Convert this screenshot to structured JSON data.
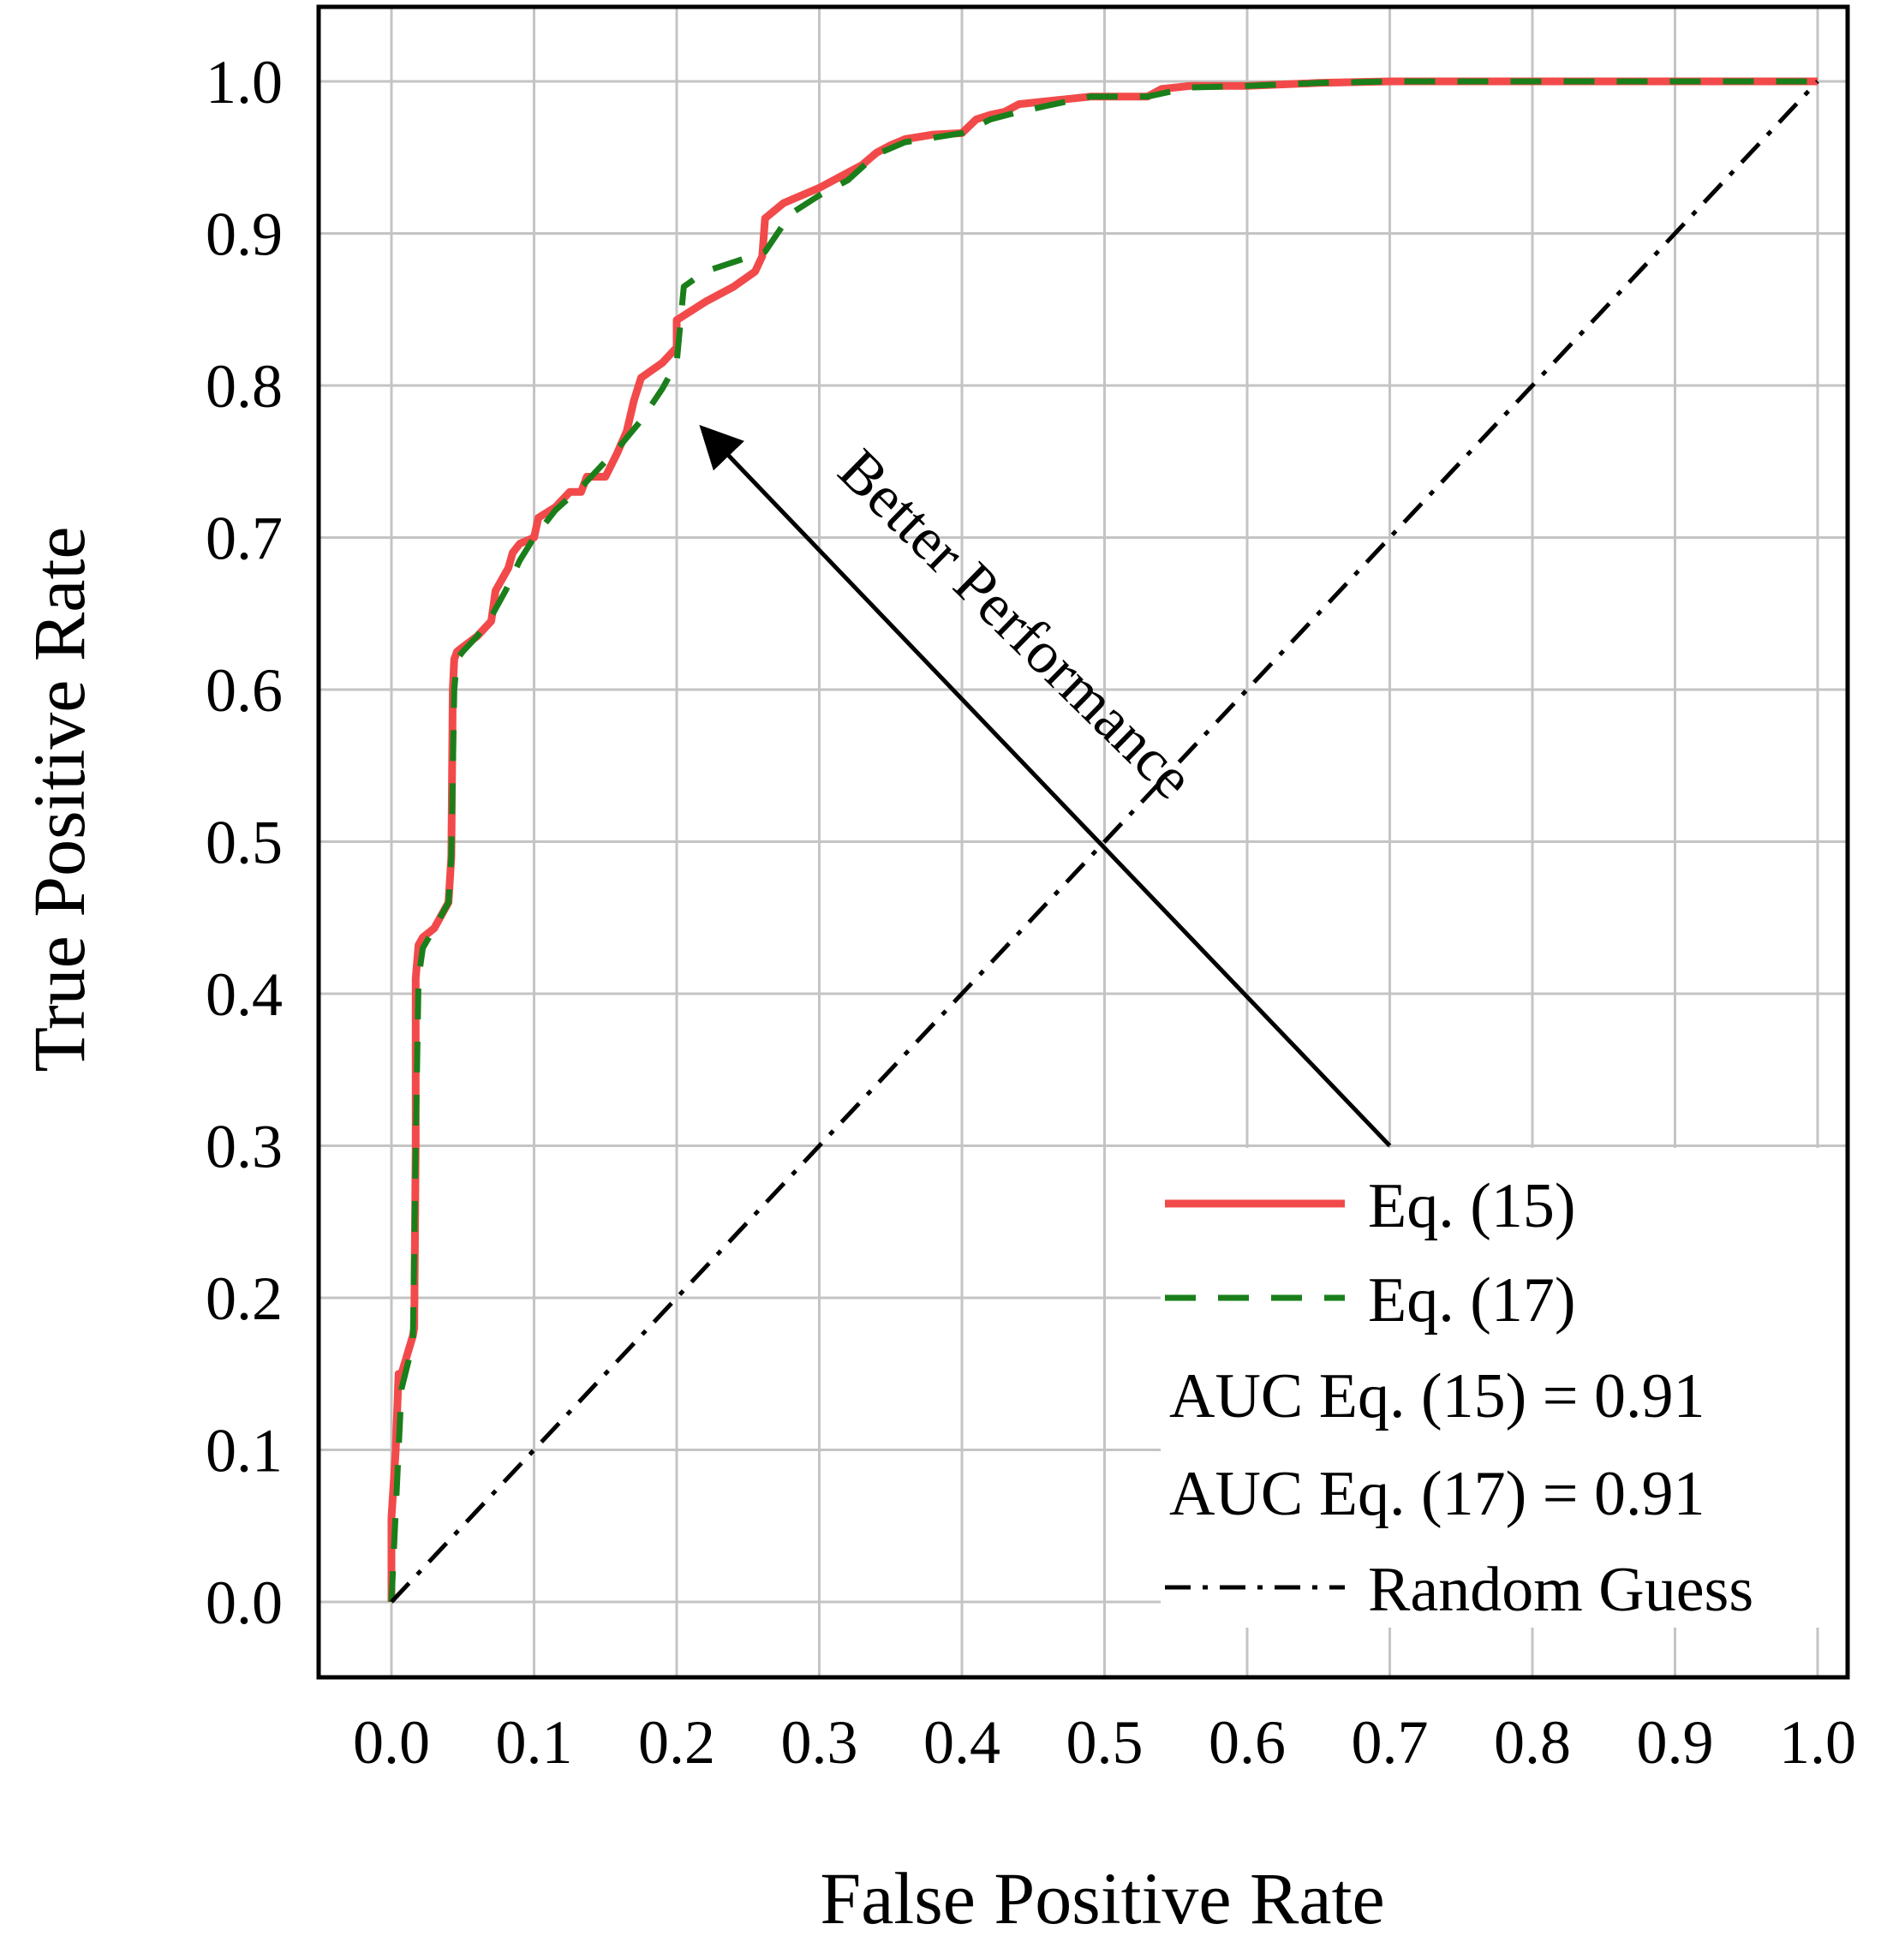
{
  "colors": {
    "eq15": "#f24a4a",
    "eq17": "#1a7f1a",
    "random": "#000000",
    "grid": "#c4c4c4",
    "axis": "#000000"
  },
  "chart_data": {
    "type": "line",
    "xlabel": "False Positive Rate",
    "ylabel": "True Positive Rate",
    "xlim": [
      0.0,
      1.0
    ],
    "ylim": [
      0.0,
      1.0
    ],
    "grid": true,
    "legend_position": "bottom-right",
    "x_ticks": [
      "0.0",
      "0.1",
      "0.2",
      "0.3",
      "0.4",
      "0.5",
      "0.6",
      "0.7",
      "0.8",
      "0.9",
      "1.0"
    ],
    "y_ticks": [
      "0.0",
      "0.1",
      "0.2",
      "0.3",
      "0.4",
      "0.5",
      "0.6",
      "0.7",
      "0.8",
      "0.9",
      "1.0"
    ],
    "series": [
      {
        "name": "Eq. (15)",
        "style": "solid",
        "x": [
          0.0,
          0.0,
          0.003,
          0.005,
          0.007,
          0.015,
          0.016,
          0.017,
          0.017,
          0.019,
          0.022,
          0.03,
          0.04,
          0.042,
          0.043,
          0.044,
          0.046,
          0.05,
          0.06,
          0.065,
          0.07,
          0.073,
          0.082,
          0.085,
          0.09,
          0.1,
          0.103,
          0.115,
          0.125,
          0.133,
          0.137,
          0.15,
          0.158,
          0.165,
          0.17,
          0.175,
          0.19,
          0.2,
          0.2,
          0.22,
          0.24,
          0.255,
          0.26,
          0.262,
          0.275,
          0.3,
          0.32,
          0.33,
          0.34,
          0.35,
          0.36,
          0.38,
          0.4,
          0.41,
          0.42,
          0.43,
          0.44,
          0.47,
          0.49,
          0.53,
          0.54,
          0.56,
          0.6,
          0.65,
          0.7,
          0.8,
          1.0
        ],
        "y": [
          0.0,
          0.055,
          0.1,
          0.15,
          0.15,
          0.175,
          0.18,
          0.3,
          0.41,
          0.432,
          0.437,
          0.443,
          0.46,
          0.49,
          0.6,
          0.62,
          0.625,
          0.628,
          0.635,
          0.64,
          0.645,
          0.665,
          0.68,
          0.69,
          0.696,
          0.7,
          0.713,
          0.72,
          0.73,
          0.73,
          0.74,
          0.74,
          0.755,
          0.77,
          0.79,
          0.805,
          0.815,
          0.825,
          0.843,
          0.855,
          0.865,
          0.875,
          0.885,
          0.91,
          0.92,
          0.93,
          0.94,
          0.945,
          0.953,
          0.958,
          0.962,
          0.965,
          0.966,
          0.975,
          0.978,
          0.98,
          0.985,
          0.988,
          0.99,
          0.99,
          0.995,
          0.997,
          0.997,
          0.999,
          1.0,
          1.0,
          1.0
        ]
      },
      {
        "name": "Eq. (17)",
        "style": "dashed",
        "x": [
          0.0,
          0.003,
          0.007,
          0.015,
          0.017,
          0.019,
          0.022,
          0.03,
          0.04,
          0.042,
          0.044,
          0.046,
          0.05,
          0.06,
          0.07,
          0.08,
          0.09,
          0.1,
          0.115,
          0.135,
          0.16,
          0.175,
          0.19,
          0.2,
          0.205,
          0.22,
          0.262,
          0.28,
          0.3,
          0.32,
          0.34,
          0.36,
          0.38,
          0.4,
          0.42,
          0.44,
          0.47,
          0.49,
          0.53,
          0.56,
          0.6,
          0.65,
          0.7,
          0.8,
          1.0
        ],
        "y": [
          0.0,
          0.06,
          0.14,
          0.17,
          0.3,
          0.41,
          0.43,
          0.443,
          0.46,
          0.49,
          0.6,
          0.62,
          0.625,
          0.635,
          0.648,
          0.665,
          0.685,
          0.7,
          0.718,
          0.735,
          0.76,
          0.777,
          0.798,
          0.815,
          0.865,
          0.875,
          0.888,
          0.913,
          0.925,
          0.935,
          0.952,
          0.96,
          0.963,
          0.966,
          0.975,
          0.98,
          0.986,
          0.99,
          0.99,
          0.996,
          0.997,
          0.999,
          1.0,
          1.0,
          1.0
        ]
      },
      {
        "name": "Random Guess",
        "style": "dash-dot",
        "x": [
          0.0,
          1.0
        ],
        "y": [
          0.0,
          1.0
        ]
      }
    ],
    "legend": [
      {
        "label": "Eq. (15)",
        "style": "solid"
      },
      {
        "label": "Eq. (17)",
        "style": "dashed"
      },
      {
        "label": "AUC Eq. (15) = 0.91",
        "style": "none"
      },
      {
        "label": "AUC Eq. (17) = 0.91",
        "style": "none"
      },
      {
        "label": "Random Guess",
        "style": "dash-dot"
      }
    ],
    "annotations": [
      {
        "text": "Better Performance",
        "arrow_from": [
          0.7,
          0.3
        ],
        "arrow_to": [
          0.22,
          0.77
        ]
      }
    ]
  }
}
